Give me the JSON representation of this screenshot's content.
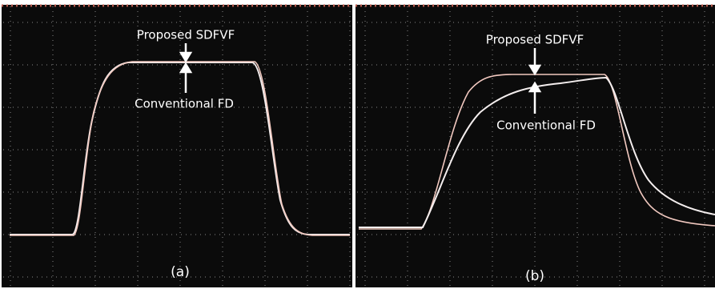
{
  "panels": [
    {
      "label": "(a)",
      "upper_annotation": "Proposed SDFVF",
      "lower_annotation": "Conventional FD"
    },
    {
      "label": "(b)",
      "upper_annotation": "Proposed SDFVF",
      "lower_annotation": "Conventional FD"
    }
  ]
}
